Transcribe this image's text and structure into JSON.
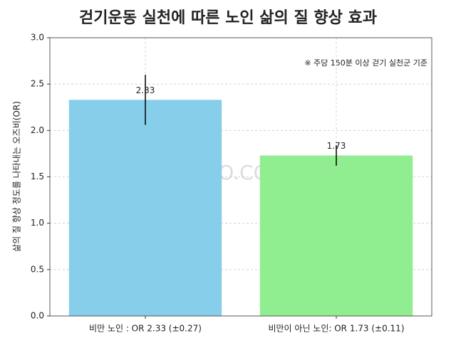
{
  "chart_data": {
    "type": "bar",
    "title": "걷기운동 실천에 따른 노인 삶의 질 향상 효과",
    "ylabel": "삶의 질 향상 정도를 나타내는 오즈비(OR)",
    "annotation": "※ 주당 150분 이상 걷기 실천군 기준",
    "watermark": "DIZZO.COM",
    "categories": [
      "비만 노인 : OR 2.33 (±0.27)",
      "비만이 아닌 노인: OR 1.73 (±0.11)"
    ],
    "values": [
      2.33,
      1.73
    ],
    "errors": [
      0.27,
      0.11
    ],
    "colors": [
      "#87ceeb",
      "#90ee90"
    ],
    "ylim": [
      0,
      3
    ],
    "yticks": [
      {
        "value": 0,
        "label": "0.0"
      },
      {
        "value": 0.5,
        "label": "0.5"
      },
      {
        "value": 1,
        "label": "1.0"
      },
      {
        "value": 1.5,
        "label": "1.5"
      },
      {
        "value": 2,
        "label": "2.0"
      },
      {
        "value": 2.5,
        "label": "2.5"
      },
      {
        "value": 3,
        "label": "3.0"
      }
    ],
    "grid": true
  }
}
